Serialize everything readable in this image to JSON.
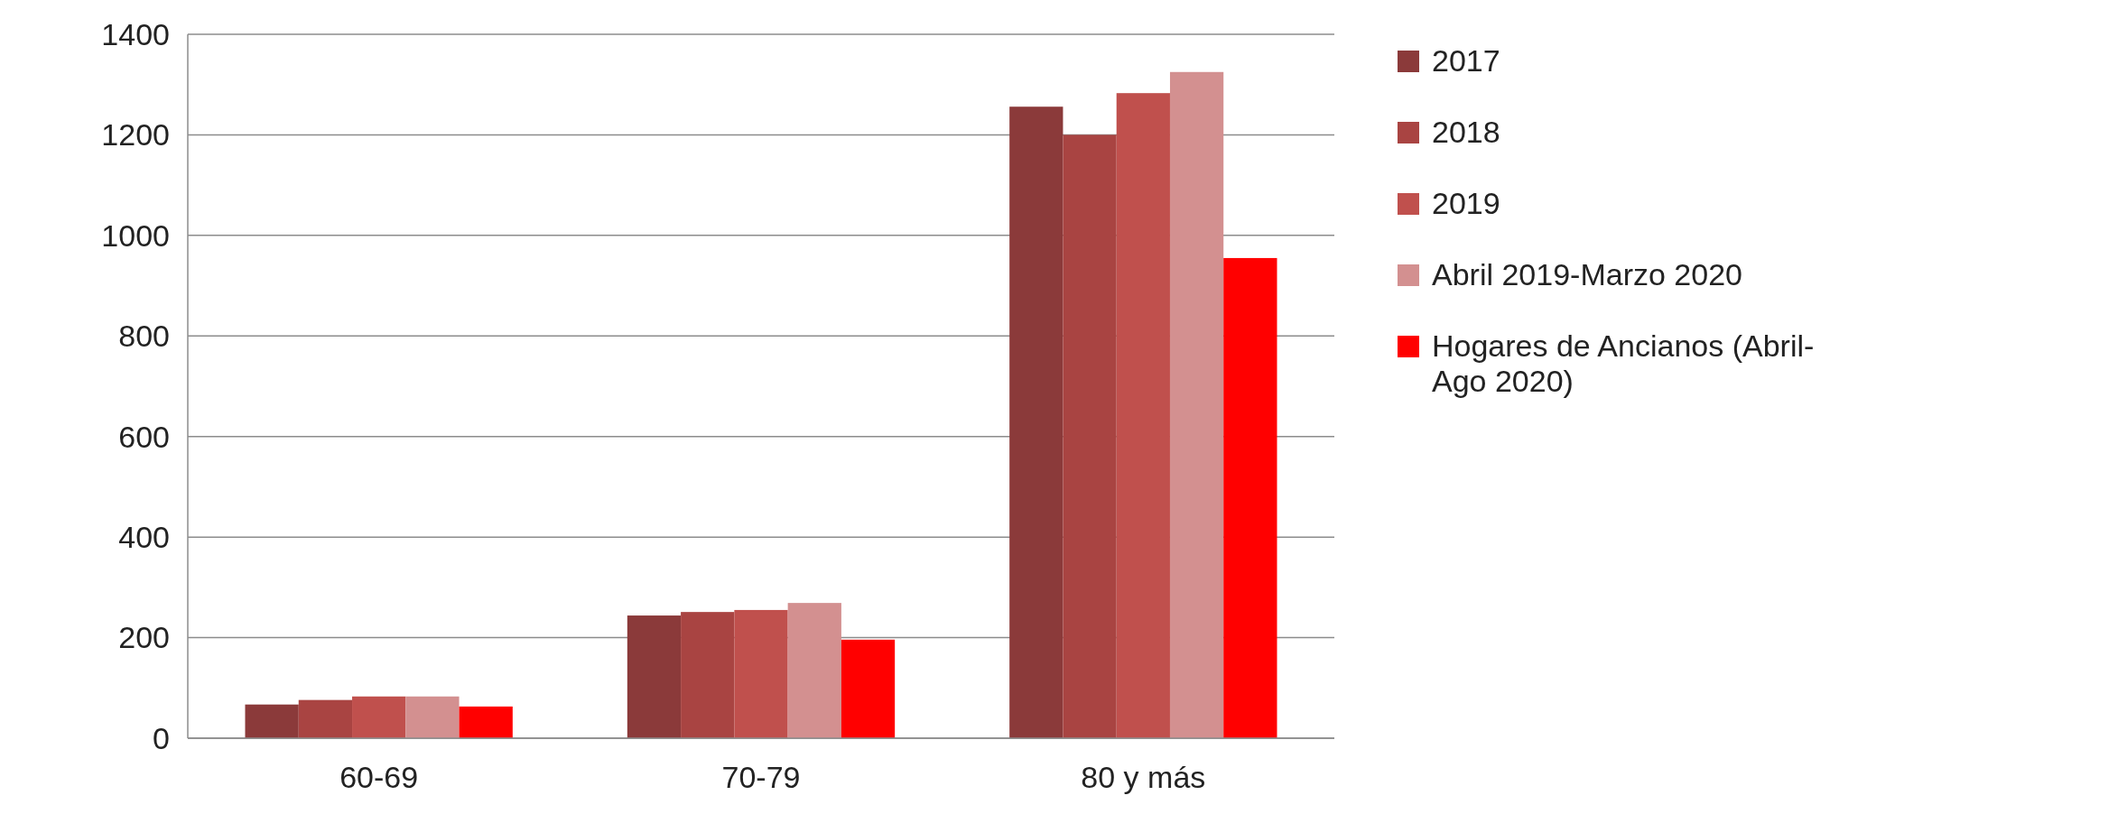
{
  "chart_data": {
    "type": "bar",
    "categories": [
      "60-69",
      "70-79",
      "80 y más"
    ],
    "series": [
      {
        "name": "2017",
        "color": "#8b3a3a",
        "values": [
          67,
          244,
          1256
        ]
      },
      {
        "name": "2018",
        "color": "#a94442",
        "values": [
          76,
          251,
          1200
        ]
      },
      {
        "name": "2019",
        "color": "#c0504d",
        "values": [
          83,
          255,
          1283
        ]
      },
      {
        "name": "Abril 2019-Marzo 2020",
        "color": "#d39090",
        "values": [
          83,
          269,
          1325
        ]
      },
      {
        "name": "Hogares de Ancianos (Abril- Ago 2020)",
        "color": "#ff0000",
        "values": [
          63,
          196,
          955
        ]
      }
    ],
    "ylim": [
      0,
      1400
    ],
    "yticks": [
      0,
      200,
      400,
      600,
      800,
      1000,
      1200,
      1400
    ],
    "grid": "y",
    "legend": "right"
  }
}
